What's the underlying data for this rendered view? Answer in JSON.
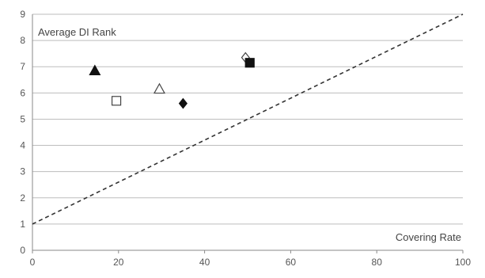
{
  "chart_data": {
    "type": "scatter",
    "title": "",
    "xlabel": "Covering Rate",
    "ylabel": "Average DI Rank",
    "xlim": [
      0,
      100
    ],
    "ylim": [
      0,
      9
    ],
    "x_ticks": [
      "0",
      "20",
      "40",
      "60",
      "80",
      "100"
    ],
    "y_ticks": [
      "0",
      "1",
      "2",
      "3",
      "4",
      "5",
      "6",
      "7",
      "8",
      "9"
    ],
    "grid": "horizontal",
    "legend": "none",
    "points": [
      {
        "x": 14.5,
        "y": 6.85,
        "marker": "triangle-filled"
      },
      {
        "x": 19.5,
        "y": 5.7,
        "marker": "square-open"
      },
      {
        "x": 29.5,
        "y": 6.15,
        "marker": "triangle-open"
      },
      {
        "x": 35,
        "y": 5.6,
        "marker": "diamond-filled"
      },
      {
        "x": 49.5,
        "y": 7.35,
        "marker": "diamond-open"
      },
      {
        "x": 50.5,
        "y": 7.15,
        "marker": "square-filled"
      }
    ],
    "reference_line": {
      "style": "dashed",
      "x": [
        0,
        100
      ],
      "y": [
        1,
        9
      ]
    },
    "colors": {
      "marker": "#111111",
      "grid": "#bdbdbd",
      "line": "#333333"
    }
  }
}
